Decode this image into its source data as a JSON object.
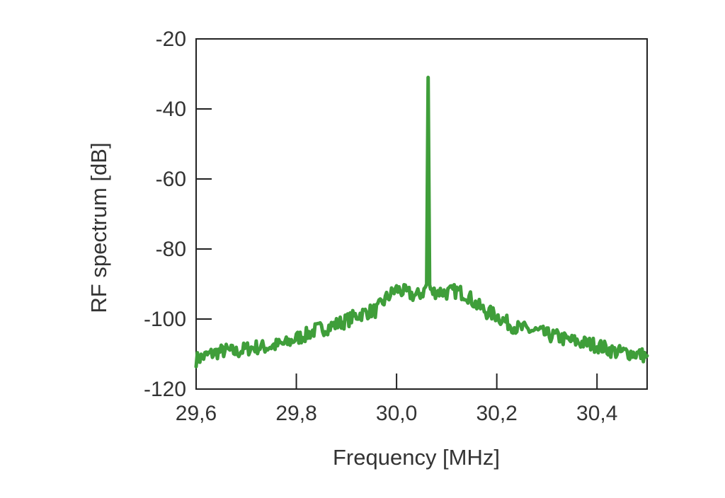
{
  "chart_data": {
    "type": "line",
    "title": "",
    "xlabel": "Frequency [MHz]",
    "ylabel": "RF spectrum [dB]",
    "xlim": [
      29.6,
      30.5
    ],
    "ylim": [
      -120,
      -20
    ],
    "xticks": [
      29.6,
      29.8,
      30.0,
      30.2,
      30.4
    ],
    "xtick_labels": [
      "29,6",
      "29,8",
      "30,0",
      "30,2",
      "30,4"
    ],
    "yticks": [
      -20,
      -40,
      -60,
      -80,
      -100,
      -120
    ],
    "ytick_labels": [
      "-20",
      "-40",
      "-60",
      "-80",
      "-100",
      "-120"
    ],
    "grid": false,
    "legend": "none",
    "series": [
      {
        "color": "#3f9e3a",
        "x": [
          29.6,
          29.62,
          29.64,
          29.66,
          29.68,
          29.7,
          29.72,
          29.74,
          29.76,
          29.78,
          29.8,
          29.82,
          29.84,
          29.86,
          29.88,
          29.9,
          29.92,
          29.94,
          29.96,
          29.98,
          30.0,
          30.02,
          30.04,
          30.055,
          30.06,
          30.063,
          30.066,
          30.07,
          30.08,
          30.1,
          30.12,
          30.14,
          30.16,
          30.18,
          30.2,
          30.22,
          30.24,
          30.26,
          30.28,
          30.3,
          30.32,
          30.34,
          30.36,
          30.38,
          30.4,
          30.42,
          30.44,
          30.46,
          30.48,
          30.5
        ],
        "values": [
          -111.5,
          -110.5,
          -109.5,
          -109.0,
          -109.5,
          -108.5,
          -108.0,
          -108.0,
          -107.5,
          -107.0,
          -105.5,
          -104.5,
          -103.0,
          -102.5,
          -101.5,
          -100.5,
          -99.0,
          -98.0,
          -97.5,
          -94.0,
          -91.5,
          -92.5,
          -93.5,
          -92.0,
          -90.0,
          -31.0,
          -90.5,
          -92.5,
          -92.0,
          -92.5,
          -92.0,
          -93.0,
          -96.0,
          -98.0,
          -99.0,
          -101.0,
          -102.5,
          -103.0,
          -103.5,
          -104.5,
          -105.0,
          -106.0,
          -106.5,
          -107.0,
          -107.5,
          -108.5,
          -109.5,
          -109.5,
          -110.0,
          -110.5
        ]
      }
    ]
  }
}
